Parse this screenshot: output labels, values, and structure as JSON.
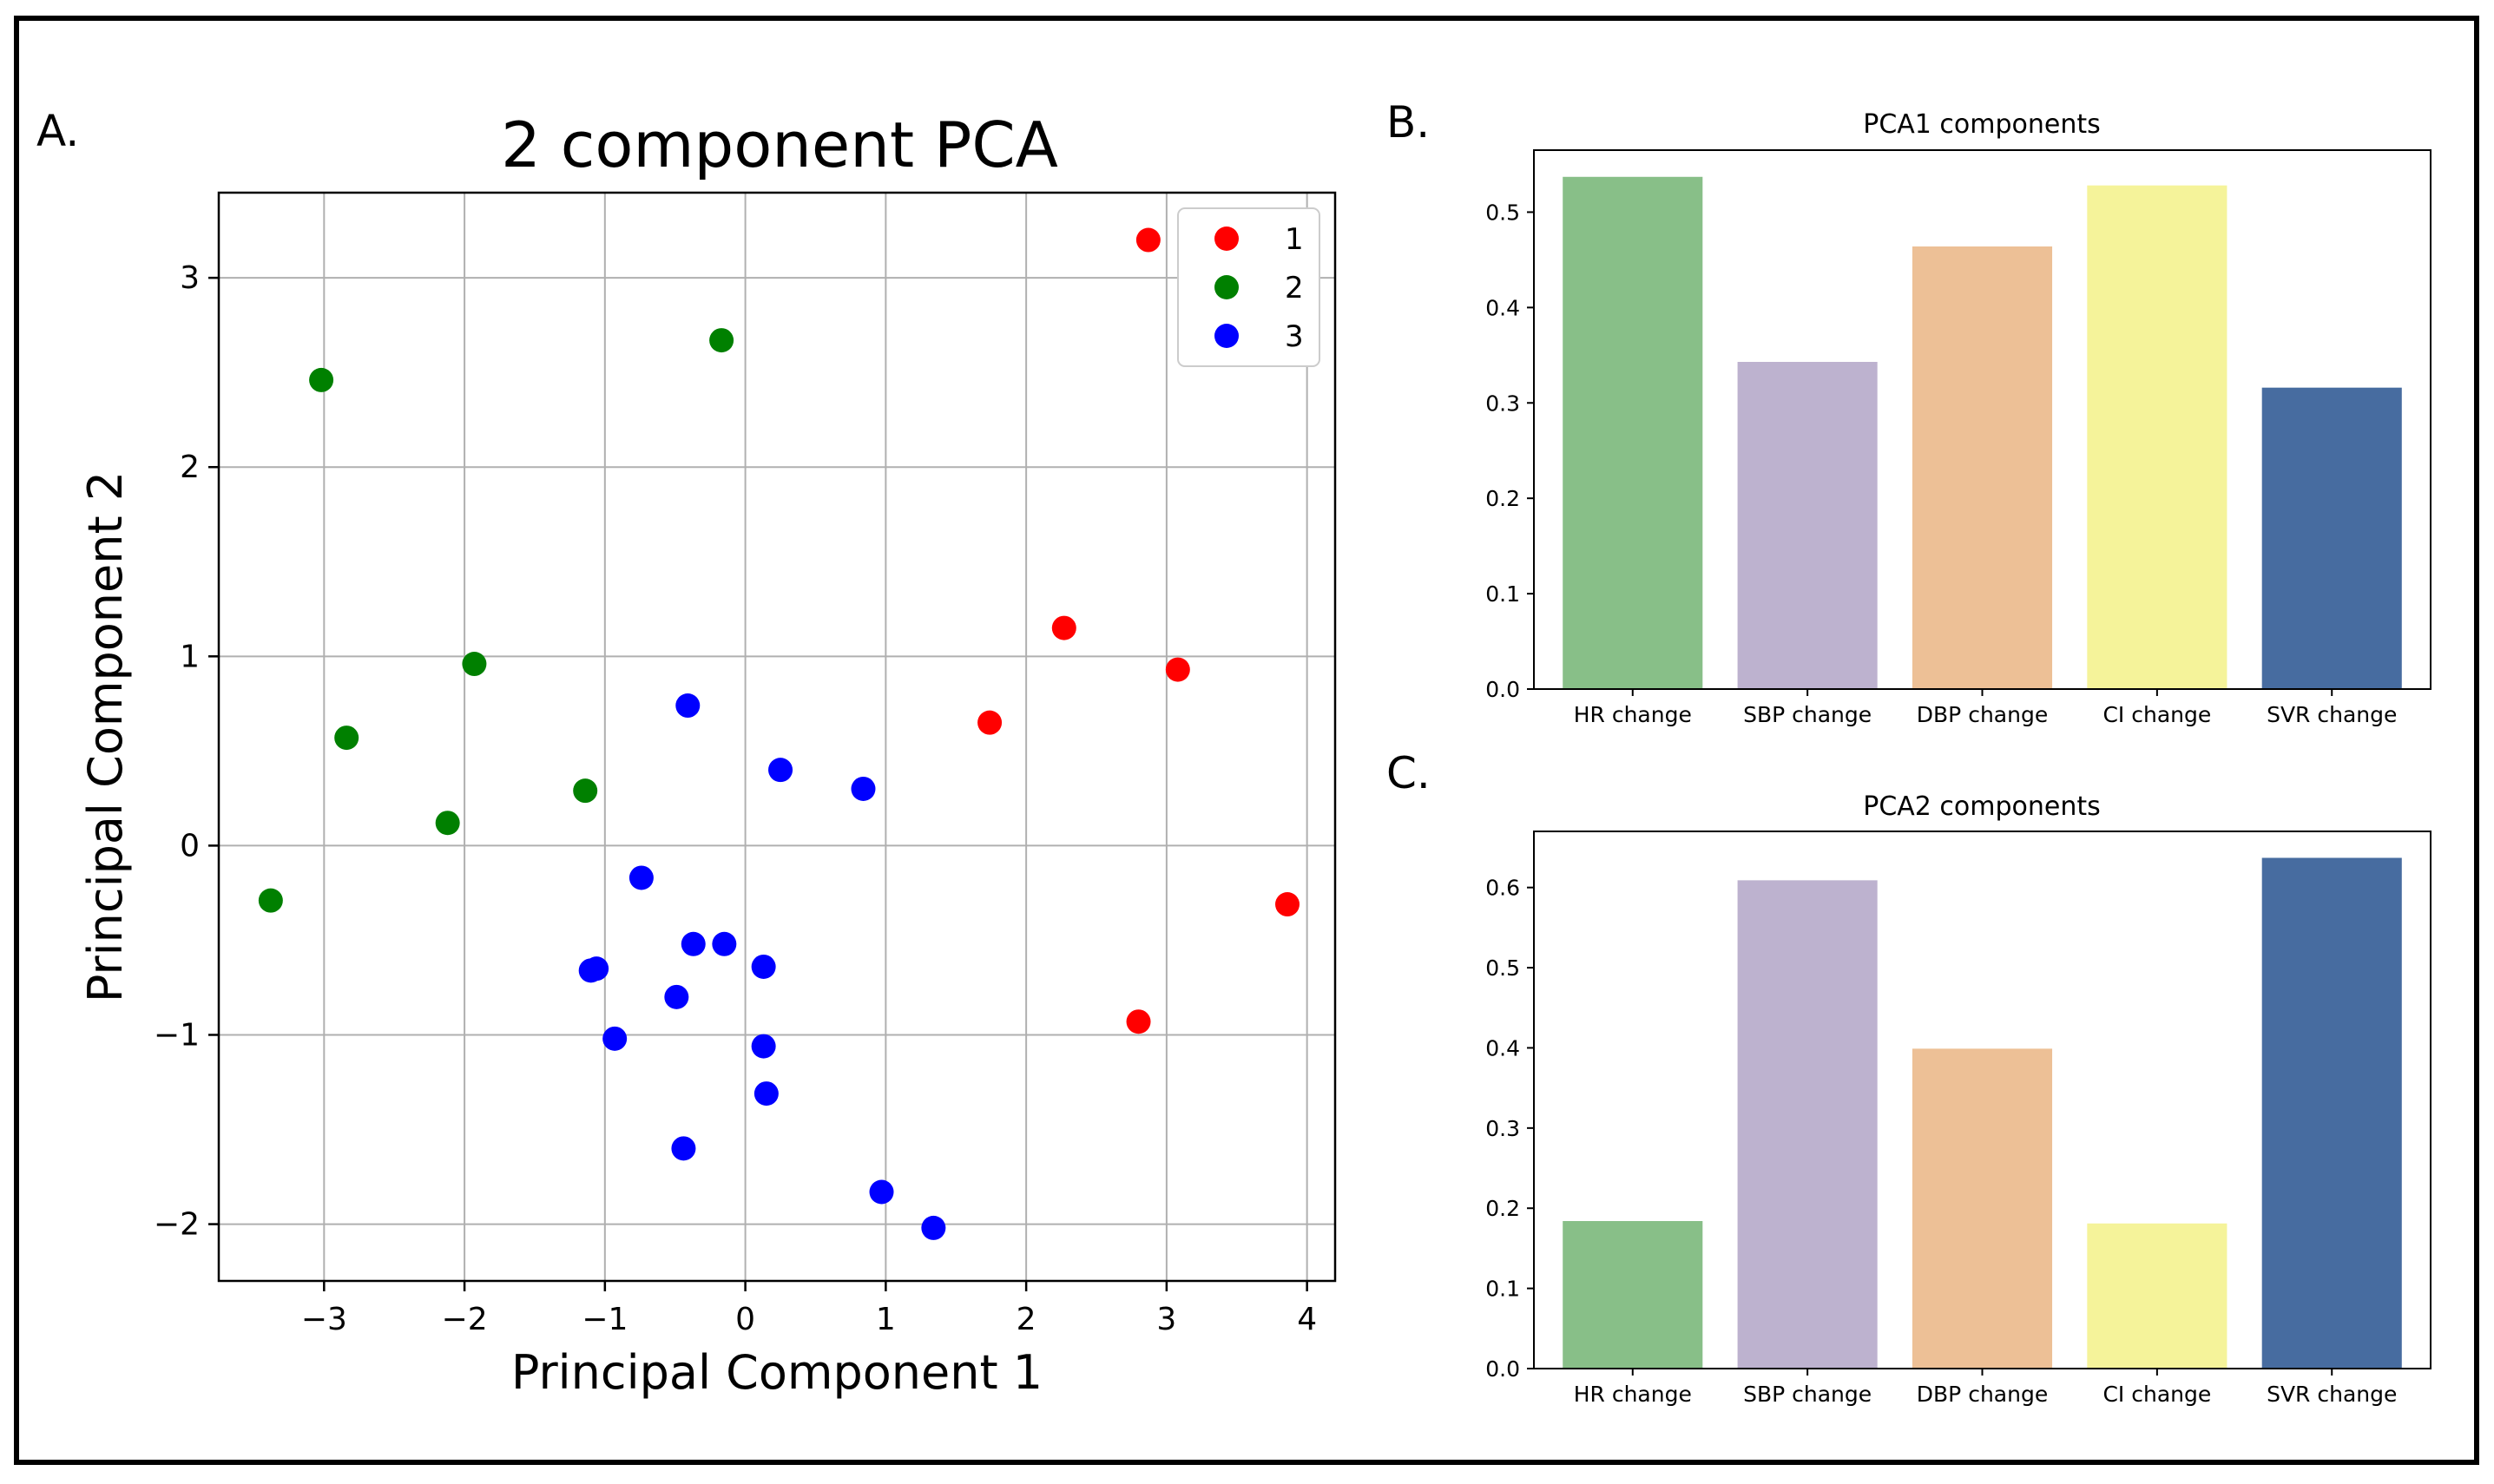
{
  "chart_data": [
    {
      "panel": "A.",
      "type": "scatter",
      "title": "2 component PCA",
      "xlabel": "Principal Component 1",
      "ylabel": "Principal Component 2",
      "xlim": [
        -3.75,
        4.2
      ],
      "ylim": [
        -2.3,
        3.45
      ],
      "xticks": [
        -3,
        -2,
        -1,
        0,
        1,
        2,
        3,
        4
      ],
      "yticks": [
        -2,
        -1,
        0,
        1,
        2,
        3
      ],
      "xtick_labels": [
        "−3",
        "−2",
        "−1",
        "0",
        "1",
        "2",
        "3",
        "4"
      ],
      "ytick_labels": [
        "−2",
        "−1",
        "0",
        "1",
        "2",
        "3"
      ],
      "grid": true,
      "legend_position": "top-right",
      "series": [
        {
          "name": "1",
          "color": "#ff0000",
          "points": [
            [
              2.87,
              3.2
            ],
            [
              2.27,
              1.15
            ],
            [
              3.08,
              0.93
            ],
            [
              1.74,
              0.65
            ],
            [
              3.86,
              -0.31
            ],
            [
              2.8,
              -0.93
            ]
          ]
        },
        {
          "name": "2",
          "color": "#008000",
          "points": [
            [
              -3.02,
              2.46
            ],
            [
              -0.17,
              2.67
            ],
            [
              -1.93,
              0.96
            ],
            [
              -2.84,
              0.57
            ],
            [
              -1.14,
              0.29
            ],
            [
              -2.12,
              0.12
            ],
            [
              -3.38,
              -0.29
            ]
          ]
        },
        {
          "name": "3",
          "color": "#0000ff",
          "points": [
            [
              -0.41,
              0.74
            ],
            [
              0.25,
              0.4
            ],
            [
              0.84,
              0.3
            ],
            [
              -0.74,
              -0.17
            ],
            [
              -0.37,
              -0.52
            ],
            [
              -0.15,
              -0.52
            ],
            [
              0.13,
              -0.64
            ],
            [
              -1.06,
              -0.65
            ],
            [
              -1.1,
              -0.66
            ],
            [
              -0.49,
              -0.8
            ],
            [
              -0.93,
              -1.02
            ],
            [
              0.13,
              -1.06
            ],
            [
              0.15,
              -1.31
            ],
            [
              -0.44,
              -1.6
            ],
            [
              0.97,
              -1.83
            ],
            [
              1.34,
              -2.02
            ]
          ]
        }
      ]
    },
    {
      "panel": "B.",
      "type": "bar",
      "title": "PCA1 components",
      "categories": [
        "HR change",
        "SBP change",
        "DBP change",
        "CI change",
        "SVR change"
      ],
      "values": [
        0.537,
        0.343,
        0.464,
        0.528,
        0.316
      ],
      "colors": [
        "#88bf88",
        "#bdb2cf",
        "#edc096",
        "#f5f39a",
        "#476ca0"
      ],
      "ylim": [
        0,
        0.565
      ],
      "yticks": [
        0.0,
        0.1,
        0.2,
        0.3,
        0.4,
        0.5
      ],
      "ytick_labels": [
        "0.0",
        "0.1",
        "0.2",
        "0.3",
        "0.4",
        "0.5"
      ]
    },
    {
      "panel": "C.",
      "type": "bar",
      "title": "PCA2 components",
      "categories": [
        "HR change",
        "SBP change",
        "DBP change",
        "CI change",
        "SVR change"
      ],
      "values": [
        0.184,
        0.609,
        0.399,
        0.181,
        0.637
      ],
      "colors": [
        "#88bf88",
        "#bdb2cf",
        "#edc096",
        "#f5f39a",
        "#476ca0"
      ],
      "ylim": [
        0,
        0.67
      ],
      "yticks": [
        0.0,
        0.1,
        0.2,
        0.3,
        0.4,
        0.5,
        0.6
      ],
      "ytick_labels": [
        "0.0",
        "0.1",
        "0.2",
        "0.3",
        "0.4",
        "0.5",
        "0.6"
      ]
    }
  ]
}
